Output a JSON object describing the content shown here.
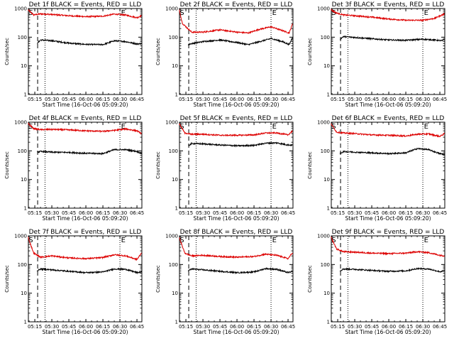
{
  "colors": {
    "events": "#000000",
    "lld": "#dd0000",
    "background": "#ffffff",
    "axis": "#000000"
  },
  "chart_data": [
    {
      "type": "line",
      "title": "Det 1f BLACK = Events, RED = LLD",
      "xlabel": "Start Time (16-Oct-06 05:09:20)",
      "ylabel": "Counts/sec",
      "yscale": "log",
      "ylim": [
        1,
        1000
      ],
      "xlim": [
        "05:09:20",
        "06:49:20"
      ],
      "x_ticks": [
        "05:15",
        "05:30",
        "05:45",
        "06:00",
        "06:15",
        "06:30",
        "06:45"
      ],
      "y_ticks": [
        "1",
        "10",
        "100",
        "1000"
      ],
      "markers": [
        {
          "label": "S",
          "time": "05:09:30"
        },
        {
          "label": "E",
          "time": "06:31:00"
        }
      ],
      "vlines": [
        {
          "style": "dashed",
          "time": "05:17:30"
        },
        {
          "style": "dotted",
          "time": "05:24:00"
        },
        {
          "style": "dotted",
          "time": "06:30:00"
        }
      ],
      "series": [
        {
          "name": "LLD",
          "color": "#dd0000",
          "x": [
            "05:09",
            "05:14",
            "05:20",
            "05:30",
            "05:45",
            "06:00",
            "06:15",
            "06:25",
            "06:35",
            "06:45",
            "06:49"
          ],
          "values": [
            900,
            600,
            650,
            620,
            560,
            520,
            540,
            640,
            590,
            480,
            560
          ]
        },
        {
          "name": "Events",
          "color": "#000000",
          "x": [
            "05:17",
            "05:20",
            "05:30",
            "05:45",
            "06:00",
            "06:15",
            "06:25",
            "06:35",
            "06:45",
            "06:49"
          ],
          "values": [
            60,
            80,
            75,
            62,
            56,
            55,
            75,
            70,
            58,
            60
          ]
        }
      ]
    },
    {
      "type": "line",
      "title": "Det 2f BLACK = Events, RED = LLD",
      "xlabel": "Start Time (16-Oct-06 05:09:20)",
      "ylabel": "Counts/sec",
      "yscale": "log",
      "ylim": [
        1,
        1000
      ],
      "xlim": [
        "05:09:20",
        "06:49:20"
      ],
      "x_ticks": [
        "05:15",
        "05:30",
        "05:45",
        "06:00",
        "06:15",
        "06:30",
        "06:45"
      ],
      "y_ticks": [
        "1",
        "10",
        "100",
        "1000"
      ],
      "markers": [
        {
          "label": "S",
          "time": "05:09:30"
        },
        {
          "label": "E",
          "time": "06:31:00"
        }
      ],
      "vlines": [
        {
          "style": "dashed",
          "time": "05:17:30"
        },
        {
          "style": "dotted",
          "time": "05:24:00"
        },
        {
          "style": "dotted",
          "time": "06:30:00"
        }
      ],
      "series": [
        {
          "name": "LLD",
          "color": "#dd0000",
          "x": [
            "05:09",
            "05:12",
            "05:20",
            "05:30",
            "05:45",
            "06:00",
            "06:10",
            "06:20",
            "06:30",
            "06:40",
            "06:46",
            "06:49"
          ],
          "values": [
            900,
            300,
            150,
            150,
            180,
            150,
            140,
            190,
            230,
            170,
            140,
            300
          ]
        },
        {
          "name": "Events",
          "color": "#000000",
          "x": [
            "05:17",
            "05:20",
            "05:30",
            "05:45",
            "06:00",
            "06:10",
            "06:20",
            "06:30",
            "06:40",
            "06:46",
            "06:49"
          ],
          "values": [
            55,
            60,
            70,
            80,
            65,
            55,
            70,
            90,
            70,
            55,
            100
          ]
        }
      ]
    },
    {
      "type": "line",
      "title": "Det 3f BLACK = Events, RED = LLD",
      "xlabel": "Start Time (16-Oct-06 05:09:20)",
      "ylabel": "Counts/sec",
      "yscale": "log",
      "ylim": [
        1,
        1000
      ],
      "xlim": [
        "05:09:20",
        "06:49:20"
      ],
      "x_ticks": [
        "05:15",
        "05:30",
        "05:45",
        "06:00",
        "06:15",
        "06:30",
        "06:45"
      ],
      "y_ticks": [
        "1",
        "10",
        "100",
        "1000"
      ],
      "markers": [
        {
          "label": "S",
          "time": "05:09:30"
        },
        {
          "label": "E",
          "time": "06:31:00"
        }
      ],
      "vlines": [
        {
          "style": "dashed",
          "time": "05:17:30"
        },
        {
          "style": "dotted",
          "time": "05:24:00"
        },
        {
          "style": "dotted",
          "time": "06:30:00"
        }
      ],
      "series": [
        {
          "name": "LLD",
          "color": "#dd0000",
          "x": [
            "05:09",
            "05:14",
            "05:20",
            "05:30",
            "05:45",
            "06:00",
            "06:15",
            "06:30",
            "06:40",
            "06:47",
            "06:49"
          ],
          "values": [
            900,
            700,
            600,
            560,
            500,
            430,
            390,
            390,
            450,
            600,
            650
          ]
        },
        {
          "name": "Events",
          "color": "#000000",
          "x": [
            "05:17",
            "05:20",
            "05:30",
            "05:45",
            "06:00",
            "06:15",
            "06:30",
            "06:40",
            "06:47",
            "06:49"
          ],
          "values": [
            85,
            105,
            98,
            88,
            80,
            78,
            85,
            80,
            75,
            85
          ]
        }
      ]
    },
    {
      "type": "line",
      "title": "Det 4f BLACK = Events, RED = LLD",
      "xlabel": "Start Time (16-Oct-06 05:09:20)",
      "ylabel": "Counts/sec",
      "yscale": "log",
      "ylim": [
        1,
        1000
      ],
      "xlim": [
        "05:09:20",
        "06:49:20"
      ],
      "x_ticks": [
        "05:15",
        "05:30",
        "05:45",
        "06:00",
        "06:15",
        "06:30",
        "06:45"
      ],
      "y_ticks": [
        "1",
        "10",
        "100",
        "1000"
      ],
      "markers": [
        {
          "label": "S",
          "time": "05:09:30"
        },
        {
          "label": "E",
          "time": "06:31:00"
        }
      ],
      "vlines": [
        {
          "style": "dashed",
          "time": "05:17:30"
        },
        {
          "style": "dotted",
          "time": "05:24:00"
        },
        {
          "style": "dotted",
          "time": "06:30:00"
        }
      ],
      "series": [
        {
          "name": "LLD",
          "color": "#dd0000",
          "x": [
            "05:09",
            "05:14",
            "05:20",
            "05:30",
            "05:45",
            "06:00",
            "06:15",
            "06:25",
            "06:35",
            "06:45",
            "06:49"
          ],
          "values": [
            900,
            600,
            550,
            560,
            540,
            500,
            480,
            520,
            580,
            500,
            400
          ]
        },
        {
          "name": "Events",
          "color": "#000000",
          "x": [
            "05:17",
            "05:20",
            "05:30",
            "05:45",
            "06:00",
            "06:15",
            "06:25",
            "06:35",
            "06:45",
            "06:49"
          ],
          "values": [
            90,
            95,
            90,
            88,
            82,
            80,
            110,
            110,
            95,
            80
          ]
        }
      ]
    },
    {
      "type": "line",
      "title": "Det 5f BLACK = Events, RED = LLD",
      "xlabel": "Start Time (16-Oct-06 05:09:20)",
      "ylabel": "Counts/sec",
      "yscale": "log",
      "ylim": [
        1,
        1000
      ],
      "xlim": [
        "05:09:20",
        "06:49:20"
      ],
      "x_ticks": [
        "05:15",
        "05:30",
        "05:45",
        "06:00",
        "06:15",
        "06:30",
        "06:45"
      ],
      "y_ticks": [
        "1",
        "10",
        "100",
        "1000"
      ],
      "markers": [
        {
          "label": "S",
          "time": "05:09:30"
        },
        {
          "label": "E",
          "time": "06:31:00"
        }
      ],
      "vlines": [
        {
          "style": "dashed",
          "time": "05:17:30"
        },
        {
          "style": "dotted",
          "time": "05:24:00"
        },
        {
          "style": "dotted",
          "time": "06:30:00"
        }
      ],
      "series": [
        {
          "name": "LLD",
          "color": "#dd0000",
          "x": [
            "05:09",
            "05:14",
            "05:20",
            "05:30",
            "05:45",
            "06:00",
            "06:15",
            "06:25",
            "06:35",
            "06:45",
            "06:49"
          ],
          "values": [
            900,
            420,
            380,
            380,
            350,
            350,
            360,
            420,
            420,
            360,
            500
          ]
        },
        {
          "name": "Events",
          "color": "#000000",
          "x": [
            "05:17",
            "05:20",
            "05:30",
            "05:45",
            "06:00",
            "06:15",
            "06:25",
            "06:35",
            "06:45",
            "06:49"
          ],
          "values": [
            150,
            180,
            175,
            160,
            150,
            155,
            185,
            190,
            160,
            160
          ]
        }
      ]
    },
    {
      "type": "line",
      "title": "Det 6f BLACK = Events, RED = LLD",
      "xlabel": "Start Time (16-Oct-06 05:09:20)",
      "ylabel": "Counts/sec",
      "yscale": "log",
      "ylim": [
        1,
        1000
      ],
      "xlim": [
        "05:09:20",
        "06:49:20"
      ],
      "x_ticks": [
        "05:15",
        "05:30",
        "05:45",
        "06:00",
        "06:15",
        "06:30",
        "06:45"
      ],
      "y_ticks": [
        "1",
        "10",
        "100",
        "1000"
      ],
      "markers": [
        {
          "label": "S",
          "time": "05:09:30"
        },
        {
          "label": "E",
          "time": "06:31:00"
        }
      ],
      "vlines": [
        {
          "style": "dashed",
          "time": "05:17:30"
        },
        {
          "style": "dotted",
          "time": "05:24:00"
        },
        {
          "style": "dotted",
          "time": "06:30:00"
        }
      ],
      "series": [
        {
          "name": "LLD",
          "color": "#dd0000",
          "x": [
            "05:09",
            "05:14",
            "05:20",
            "05:30",
            "05:45",
            "06:00",
            "06:15",
            "06:25",
            "06:35",
            "06:45",
            "06:49"
          ],
          "values": [
            900,
            450,
            420,
            400,
            360,
            350,
            330,
            380,
            390,
            320,
            400
          ]
        },
        {
          "name": "Events",
          "color": "#000000",
          "x": [
            "05:17",
            "05:20",
            "05:30",
            "05:45",
            "06:00",
            "06:15",
            "06:25",
            "06:35",
            "06:45",
            "06:49"
          ],
          "values": [
            80,
            95,
            90,
            85,
            80,
            85,
            120,
            110,
            80,
            75
          ]
        }
      ]
    },
    {
      "type": "line",
      "title": "Det 7f BLACK = Events, RED = LLD",
      "xlabel": "Start Time (16-Oct-06 05:09:20)",
      "ylabel": "Counts/sec",
      "yscale": "log",
      "ylim": [
        1,
        1000
      ],
      "xlim": [
        "05:09:20",
        "06:49:20"
      ],
      "x_ticks": [
        "05:15",
        "05:30",
        "05:45",
        "06:00",
        "06:15",
        "06:30",
        "06:45"
      ],
      "y_ticks": [
        "1",
        "10",
        "100",
        "1000"
      ],
      "markers": [
        {
          "label": "S",
          "time": "05:09:30"
        },
        {
          "label": "E",
          "time": "06:31:00"
        }
      ],
      "vlines": [
        {
          "style": "dashed",
          "time": "05:17:30"
        },
        {
          "style": "dotted",
          "time": "05:24:00"
        },
        {
          "style": "dotted",
          "time": "06:30:00"
        }
      ],
      "series": [
        {
          "name": "LLD",
          "color": "#dd0000",
          "x": [
            "05:09",
            "05:14",
            "05:20",
            "05:30",
            "05:45",
            "06:00",
            "06:15",
            "06:25",
            "06:35",
            "06:45",
            "06:49"
          ],
          "values": [
            900,
            250,
            180,
            200,
            170,
            160,
            175,
            220,
            200,
            150,
            250
          ]
        },
        {
          "name": "Events",
          "color": "#000000",
          "x": [
            "05:17",
            "05:20",
            "05:30",
            "05:45",
            "06:00",
            "06:15",
            "06:25",
            "06:35",
            "06:45",
            "06:49"
          ],
          "values": [
            60,
            70,
            65,
            58,
            52,
            55,
            70,
            68,
            52,
            55
          ]
        }
      ]
    },
    {
      "type": "line",
      "title": "Det 8f BLACK = Events, RED = LLD",
      "xlabel": "Start Time (16-Oct-06 05:09:20)",
      "ylabel": "Counts/sec",
      "yscale": "log",
      "ylim": [
        1,
        1000
      ],
      "xlim": [
        "05:09:20",
        "06:49:20"
      ],
      "x_ticks": [
        "05:15",
        "05:30",
        "05:45",
        "06:00",
        "06:15",
        "06:30",
        "06:45"
      ],
      "y_ticks": [
        "1",
        "10",
        "100",
        "1000"
      ],
      "markers": [
        {
          "label": "S",
          "time": "05:09:30"
        },
        {
          "label": "E",
          "time": "06:31:00"
        }
      ],
      "vlines": [
        {
          "style": "dashed",
          "time": "05:17:30"
        },
        {
          "style": "dotted",
          "time": "05:24:00"
        },
        {
          "style": "dotted",
          "time": "06:30:00"
        }
      ],
      "series": [
        {
          "name": "LLD",
          "color": "#dd0000",
          "x": [
            "05:09",
            "05:14",
            "05:20",
            "05:30",
            "05:45",
            "06:00",
            "06:15",
            "06:25",
            "06:35",
            "06:45",
            "06:49"
          ],
          "values": [
            900,
            250,
            200,
            210,
            190,
            180,
            190,
            230,
            210,
            160,
            260
          ]
        },
        {
          "name": "Events",
          "color": "#000000",
          "x": [
            "05:17",
            "05:20",
            "05:30",
            "05:45",
            "06:00",
            "06:15",
            "06:25",
            "06:35",
            "06:45",
            "06:49"
          ],
          "values": [
            60,
            70,
            65,
            58,
            52,
            55,
            72,
            68,
            52,
            58
          ]
        }
      ]
    },
    {
      "type": "line",
      "title": "Det 9f BLACK = Events, RED = LLD",
      "xlabel": "Start Time (16-Oct-06 05:09:20)",
      "ylabel": "Counts/sec",
      "yscale": "log",
      "ylim": [
        1,
        1000
      ],
      "xlim": [
        "05:09:20",
        "06:49:20"
      ],
      "x_ticks": [
        "05:15",
        "05:30",
        "05:45",
        "06:00",
        "06:15",
        "06:30",
        "06:45"
      ],
      "y_ticks": [
        "1",
        "10",
        "100",
        "1000"
      ],
      "markers": [
        {
          "label": "S",
          "time": "05:09:30"
        },
        {
          "label": "E",
          "time": "06:31:00"
        }
      ],
      "vlines": [
        {
          "style": "dashed",
          "time": "05:17:30"
        },
        {
          "style": "dotted",
          "time": "05:24:00"
        },
        {
          "style": "dotted",
          "time": "06:30:00"
        }
      ],
      "series": [
        {
          "name": "LLD",
          "color": "#dd0000",
          "x": [
            "05:09",
            "05:14",
            "05:20",
            "05:30",
            "05:45",
            "06:00",
            "06:15",
            "06:25",
            "06:35",
            "06:45",
            "06:49"
          ],
          "values": [
            900,
            350,
            280,
            270,
            250,
            240,
            250,
            280,
            260,
            210,
            200
          ]
        },
        {
          "name": "Events",
          "color": "#000000",
          "x": [
            "05:17",
            "05:20",
            "05:30",
            "05:45",
            "06:00",
            "06:15",
            "06:25",
            "06:35",
            "06:45",
            "06:49"
          ],
          "values": [
            60,
            70,
            68,
            62,
            58,
            60,
            72,
            70,
            56,
            60
          ]
        }
      ]
    }
  ]
}
